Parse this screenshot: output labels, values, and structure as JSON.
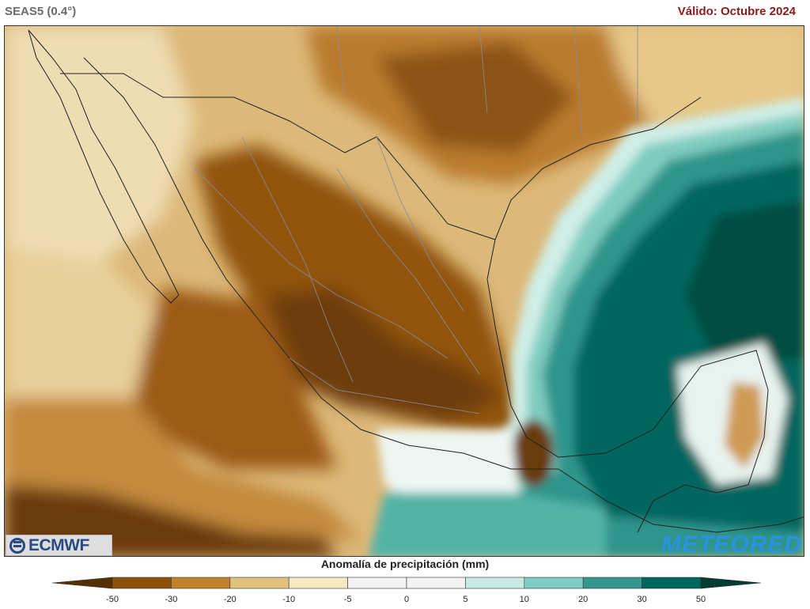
{
  "header": {
    "model": "SEAS5 (0.4°)",
    "valid": "Válido: Octubre 2024"
  },
  "legend": {
    "title": "Anomalía de precipitación (mm)",
    "ticks": [
      "-50",
      "-30",
      "-20",
      "-10",
      "-5",
      "0",
      "5",
      "10",
      "20",
      "30",
      "50"
    ],
    "colors": [
      "#543005",
      "#8c510a",
      "#bf812d",
      "#dfc27d",
      "#f6e8c3",
      "#f2f2f2",
      "#f2f2f2",
      "#c7eae5",
      "#80cdc1",
      "#35978f",
      "#01665e",
      "#003c30"
    ]
  },
  "logos": {
    "left": "ECMWF",
    "right": "METEORED"
  },
  "map": {
    "ocean_color": "#004f47",
    "land_dry_light": "#e4c78a",
    "land_dry_mid": "#bf812d",
    "land_dry_dark": "#7a460c"
  }
}
